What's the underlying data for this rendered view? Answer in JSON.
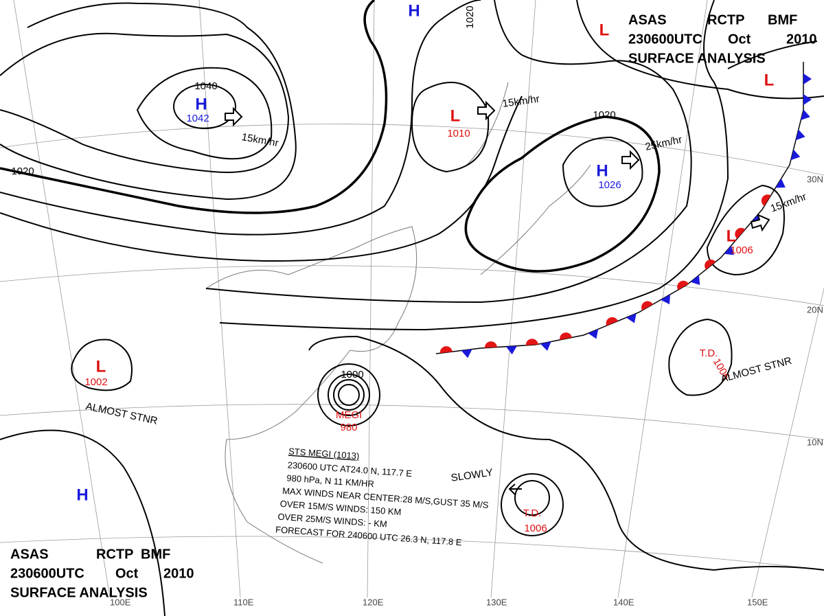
{
  "header": {
    "agency": "ASAS",
    "station": "RCTP",
    "issuer": "BMF",
    "time": "230600UTC",
    "month": "Oct",
    "year": "2010",
    "title": "SURFACE ANALYSIS"
  },
  "systems": [
    {
      "symbol": "H",
      "pressure": "1042",
      "motion": "15km/hr"
    },
    {
      "symbol": "L",
      "pressure": "1010",
      "motion": "15km/hr"
    },
    {
      "symbol": "H",
      "pressure": "1026",
      "motion": "25km/hr"
    },
    {
      "symbol": "L",
      "pressure": "1006",
      "motion": "15km/hr"
    },
    {
      "symbol": "L",
      "pressure": "1002",
      "motion": "ALMOST STNR"
    },
    {
      "symbol": "H"
    },
    {
      "symbol": "L"
    },
    {
      "symbol": "L"
    },
    {
      "symbol": "H"
    },
    {
      "symbol": "T.D.",
      "pressure": "1006",
      "motion": "ALMOST STNR"
    },
    {
      "symbol": "T.D.",
      "pressure": "1006",
      "motion": "SLOWLY"
    },
    {
      "symbol": "MEGI",
      "pressure": "980"
    }
  ],
  "isobar_labels": [
    "1040",
    "1020",
    "1020",
    "1020",
    "1000"
  ],
  "latitudes": [
    "30N",
    "20N",
    "10N"
  ],
  "longitudes": [
    "100E",
    "110E",
    "120E",
    "130E",
    "140E",
    "150E"
  ],
  "typhoon_bulletin": [
    "STS MEGI (1013)",
    "230600 UTC AT24.0 N, 117.7 E",
    "980 hPa, N 11 KM/HR",
    "MAX WINDS NEAR CENTER:28 M/S,GUST 35 M/S",
    "OVER 15M/S WINDS: 150 KM",
    "OVER 25M/S WINDS: - KM",
    "FORECAST FOR 240600 UTC 26.3 N, 117.8 E"
  ]
}
